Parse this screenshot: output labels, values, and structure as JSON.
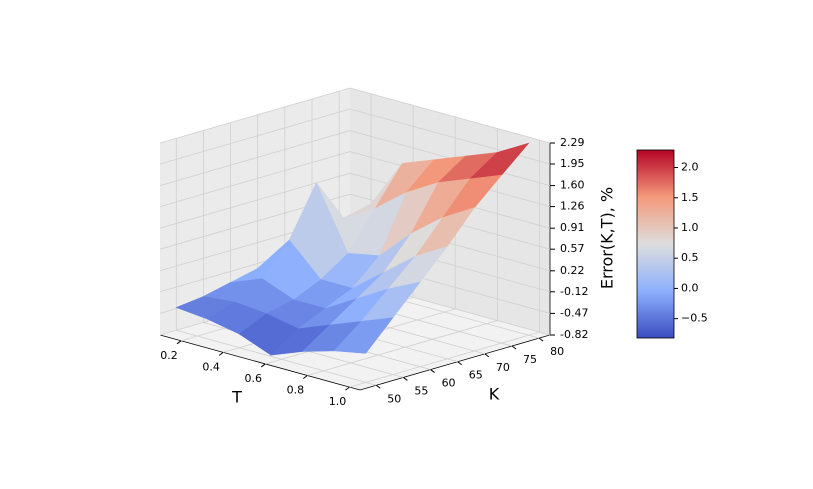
{
  "chart_data": {
    "type": "surface",
    "x_label": "T",
    "y_label": "K",
    "z_label": "Error(K,T), %",
    "x": [
      0.1,
      0.25,
      0.4,
      0.55,
      0.7,
      0.85,
      1.0
    ],
    "y": [
      50,
      55,
      60,
      65,
      70,
      75,
      80
    ],
    "z": [
      [
        -0.45,
        -0.5,
        -0.6,
        -0.8,
        -0.6,
        -0.45,
        -0.35
      ],
      [
        -0.4,
        -0.35,
        -0.4,
        -0.5,
        -0.3,
        -0.1,
        0.1
      ],
      [
        -0.3,
        -0.1,
        -0.3,
        -0.3,
        0.0,
        0.3,
        0.55
      ],
      [
        -0.2,
        0.4,
        -0.1,
        -0.1,
        0.3,
        0.7,
        1.0
      ],
      [
        -0.1,
        1.2,
        0.2,
        0.3,
        0.8,
        1.2,
        1.5
      ],
      [
        0.0,
        0.5,
        0.8,
        1.2,
        1.5,
        1.7,
        1.9
      ],
      [
        0.1,
        0.6,
        1.4,
        1.6,
        1.8,
        2.0,
        2.29
      ]
    ],
    "xlim": [
      0.1,
      1.05
    ],
    "ylim": [
      47,
      82
    ],
    "zlim": [
      -0.82,
      2.29
    ],
    "xticks": [
      0.2,
      0.4,
      0.6,
      0.8,
      {
        "value": 1.0,
        "label": "1.0"
      }
    ],
    "yticks": [
      50,
      55,
      60,
      65,
      70,
      75,
      80
    ],
    "zticks": [
      -0.82,
      -0.47,
      -0.12,
      0.22,
      0.57,
      0.91,
      1.26,
      {
        "value": 1.6,
        "label": "1.60"
      },
      1.95,
      2.29
    ],
    "colormap": "coolwarm",
    "clim": [
      -0.82,
      2.29
    ],
    "colorbar_ticks": [
      {
        "value": -0.5,
        "label": "−0.5"
      },
      {
        "value": 0.0,
        "label": "0.0"
      },
      0.5,
      {
        "value": 1.0,
        "label": "1.0"
      },
      1.5,
      {
        "value": 2.0,
        "label": "2.0"
      }
    ],
    "grid": true
  }
}
